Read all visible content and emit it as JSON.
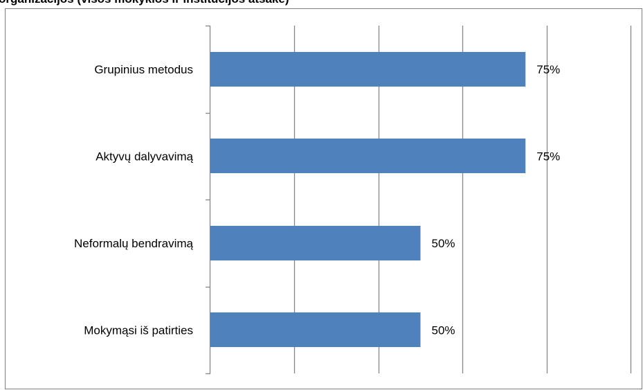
{
  "chart_data": {
    "type": "bar",
    "orientation": "horizontal",
    "title": "organizacijos (visos mokyklos ir institucijos atsakė)",
    "categories": [
      "Grupinius metodus",
      "Aktyvų dalyvavimą",
      "Neformalų bendravimą",
      "Mokymąsi iš patirties"
    ],
    "values": [
      75,
      75,
      50,
      50
    ],
    "value_labels": [
      "75%",
      "75%",
      "50%",
      "50%"
    ],
    "xlim": [
      0,
      100
    ],
    "grid": "vertical",
    "legend": "none",
    "bar_color": "#4f81bd"
  }
}
